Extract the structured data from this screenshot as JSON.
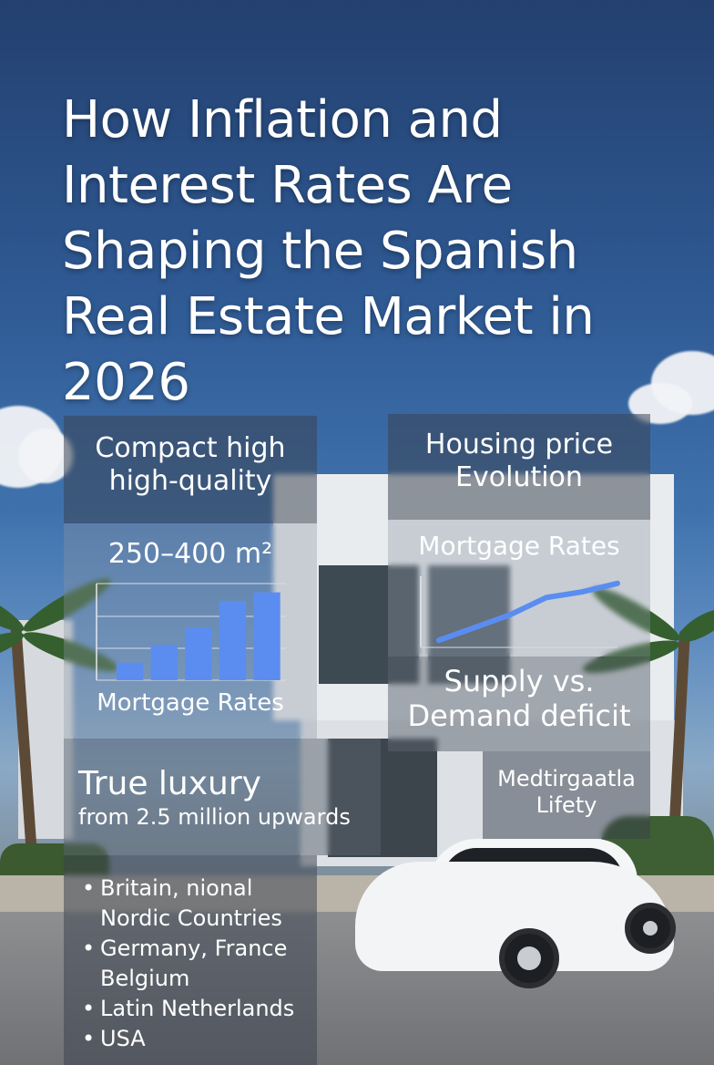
{
  "title": "How Inflation and Interest Rates Are Shaping the Spanish Real Estate Market in 2026",
  "left": {
    "heading": "Compact high high-quality",
    "size_range": "250–400 m²",
    "chart_label": "Mortgage Rates",
    "luxury_title": "True luxury",
    "luxury_sub": "from 2.5 million upwards",
    "bullets": [
      "Britain, nional Nordic Countries",
      "Germany, France Belgium",
      "Latin Netherlands",
      "USA"
    ]
  },
  "right": {
    "heading": "Housing price Evolution",
    "chart_label": "Mortgage Rates",
    "supply_title": "Supply vs. Demand deficit",
    "bottom_label": "Medtirgaatla Lifety"
  },
  "chart_data": [
    {
      "type": "bar",
      "values": [
        1,
        2,
        3,
        4.5,
        5
      ],
      "ylim": [
        0,
        5.5
      ],
      "grid": true,
      "color": "#5b8df0"
    },
    {
      "type": "line",
      "x": [
        0,
        1,
        2,
        3,
        4,
        5
      ],
      "values": [
        0.5,
        1.4,
        2.3,
        3.5,
        3.9,
        4.5
      ],
      "ylim": [
        0,
        5
      ],
      "grid": true,
      "color": "#5b8df0"
    }
  ],
  "colors": {
    "accent": "#5b8df0",
    "panel": "#3a424e"
  }
}
